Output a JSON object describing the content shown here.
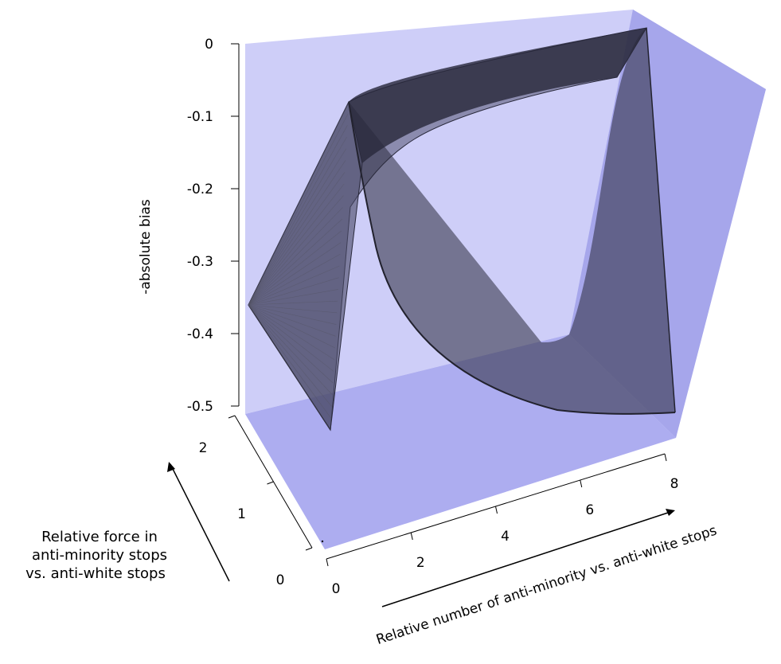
{
  "chart_data": {
    "type": "surface-3d",
    "title": "",
    "zlabel": "-absolute bias",
    "xlabel": "Relative number of anti-minority vs. anti-white stops",
    "ylabel_lines": [
      "Relative force in",
      "anti-minority stops",
      "vs. anti-white stops"
    ],
    "x_ticks": [
      "0",
      "2",
      "4",
      "6",
      "8"
    ],
    "y_ticks": [
      "0",
      "1",
      "2"
    ],
    "z_ticks": [
      "0",
      "-0.1",
      "-0.2",
      "-0.3",
      "-0.4",
      "-0.5"
    ],
    "xlim": [
      0,
      8
    ],
    "ylim": [
      0,
      2
    ],
    "zlim": [
      -0.5,
      0
    ],
    "surface_description_values": {
      "x": [
        0,
        1,
        2,
        4,
        6,
        8
      ],
      "z_at_y0": [
        -0.35,
        -0.35,
        -0.35,
        -0.35,
        -0.35,
        -0.35
      ],
      "z_at_y1": [
        -0.5,
        -0.02,
        -0.06,
        -0.08,
        -0.09,
        -0.1
      ],
      "z_at_y2": [
        -0.5,
        -0.07,
        -0.12,
        -0.15,
        -0.16,
        -0.17
      ]
    },
    "colors": {
      "box_fill": "#9c9cf2",
      "surface_fill": "#2a2a3c",
      "mesh_line": "#444455"
    }
  }
}
